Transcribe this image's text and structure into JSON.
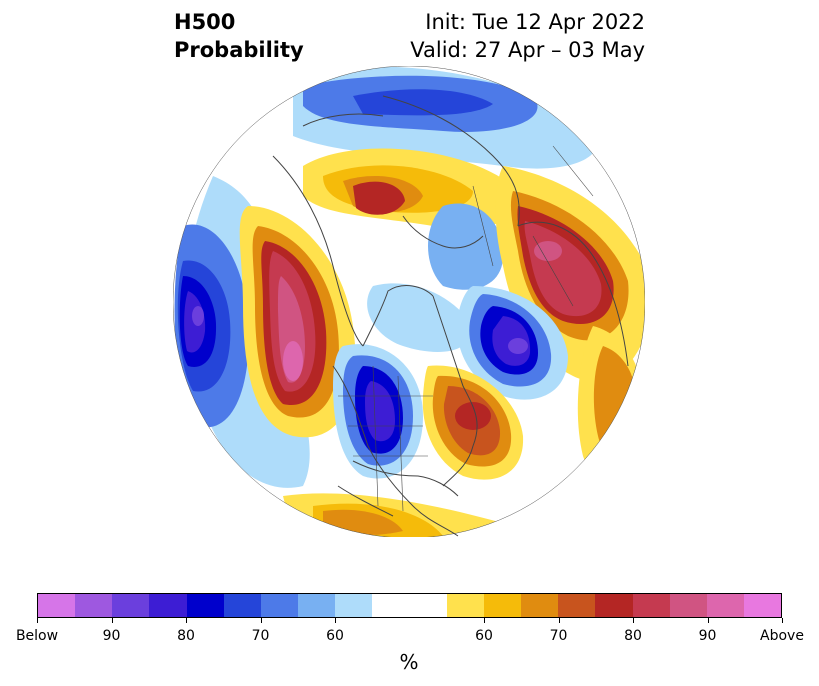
{
  "title": {
    "line1_left": "H500",
    "line2_left": "Probability",
    "line1_right": "Init: Tue 12 Apr 2022",
    "line2_right": "Valid: 27 Apr – 03 May"
  },
  "colorbar": {
    "unit": "%",
    "colors": [
      "#d675e8",
      "#9e58e0",
      "#6b3fdd",
      "#3d1dd4",
      "#0000cc",
      "#2545d9",
      "#4d7ae8",
      "#78b0f2",
      "#aedcfa",
      "#ffffff",
      "#ffffff",
      "#ffe14d",
      "#f5bb0a",
      "#e08c10",
      "#c8541e",
      "#b42624",
      "#c53a50",
      "#d05482",
      "#dd66ad",
      "#e878e0"
    ],
    "ticks": [
      "Below",
      "90",
      "80",
      "70",
      "60",
      "60",
      "70",
      "80",
      "90",
      "Above"
    ]
  },
  "map": {
    "projection": "polar stereographic (Northern Hemisphere)",
    "features": [
      "coastlines",
      "country borders",
      "state/province borders"
    ]
  }
}
